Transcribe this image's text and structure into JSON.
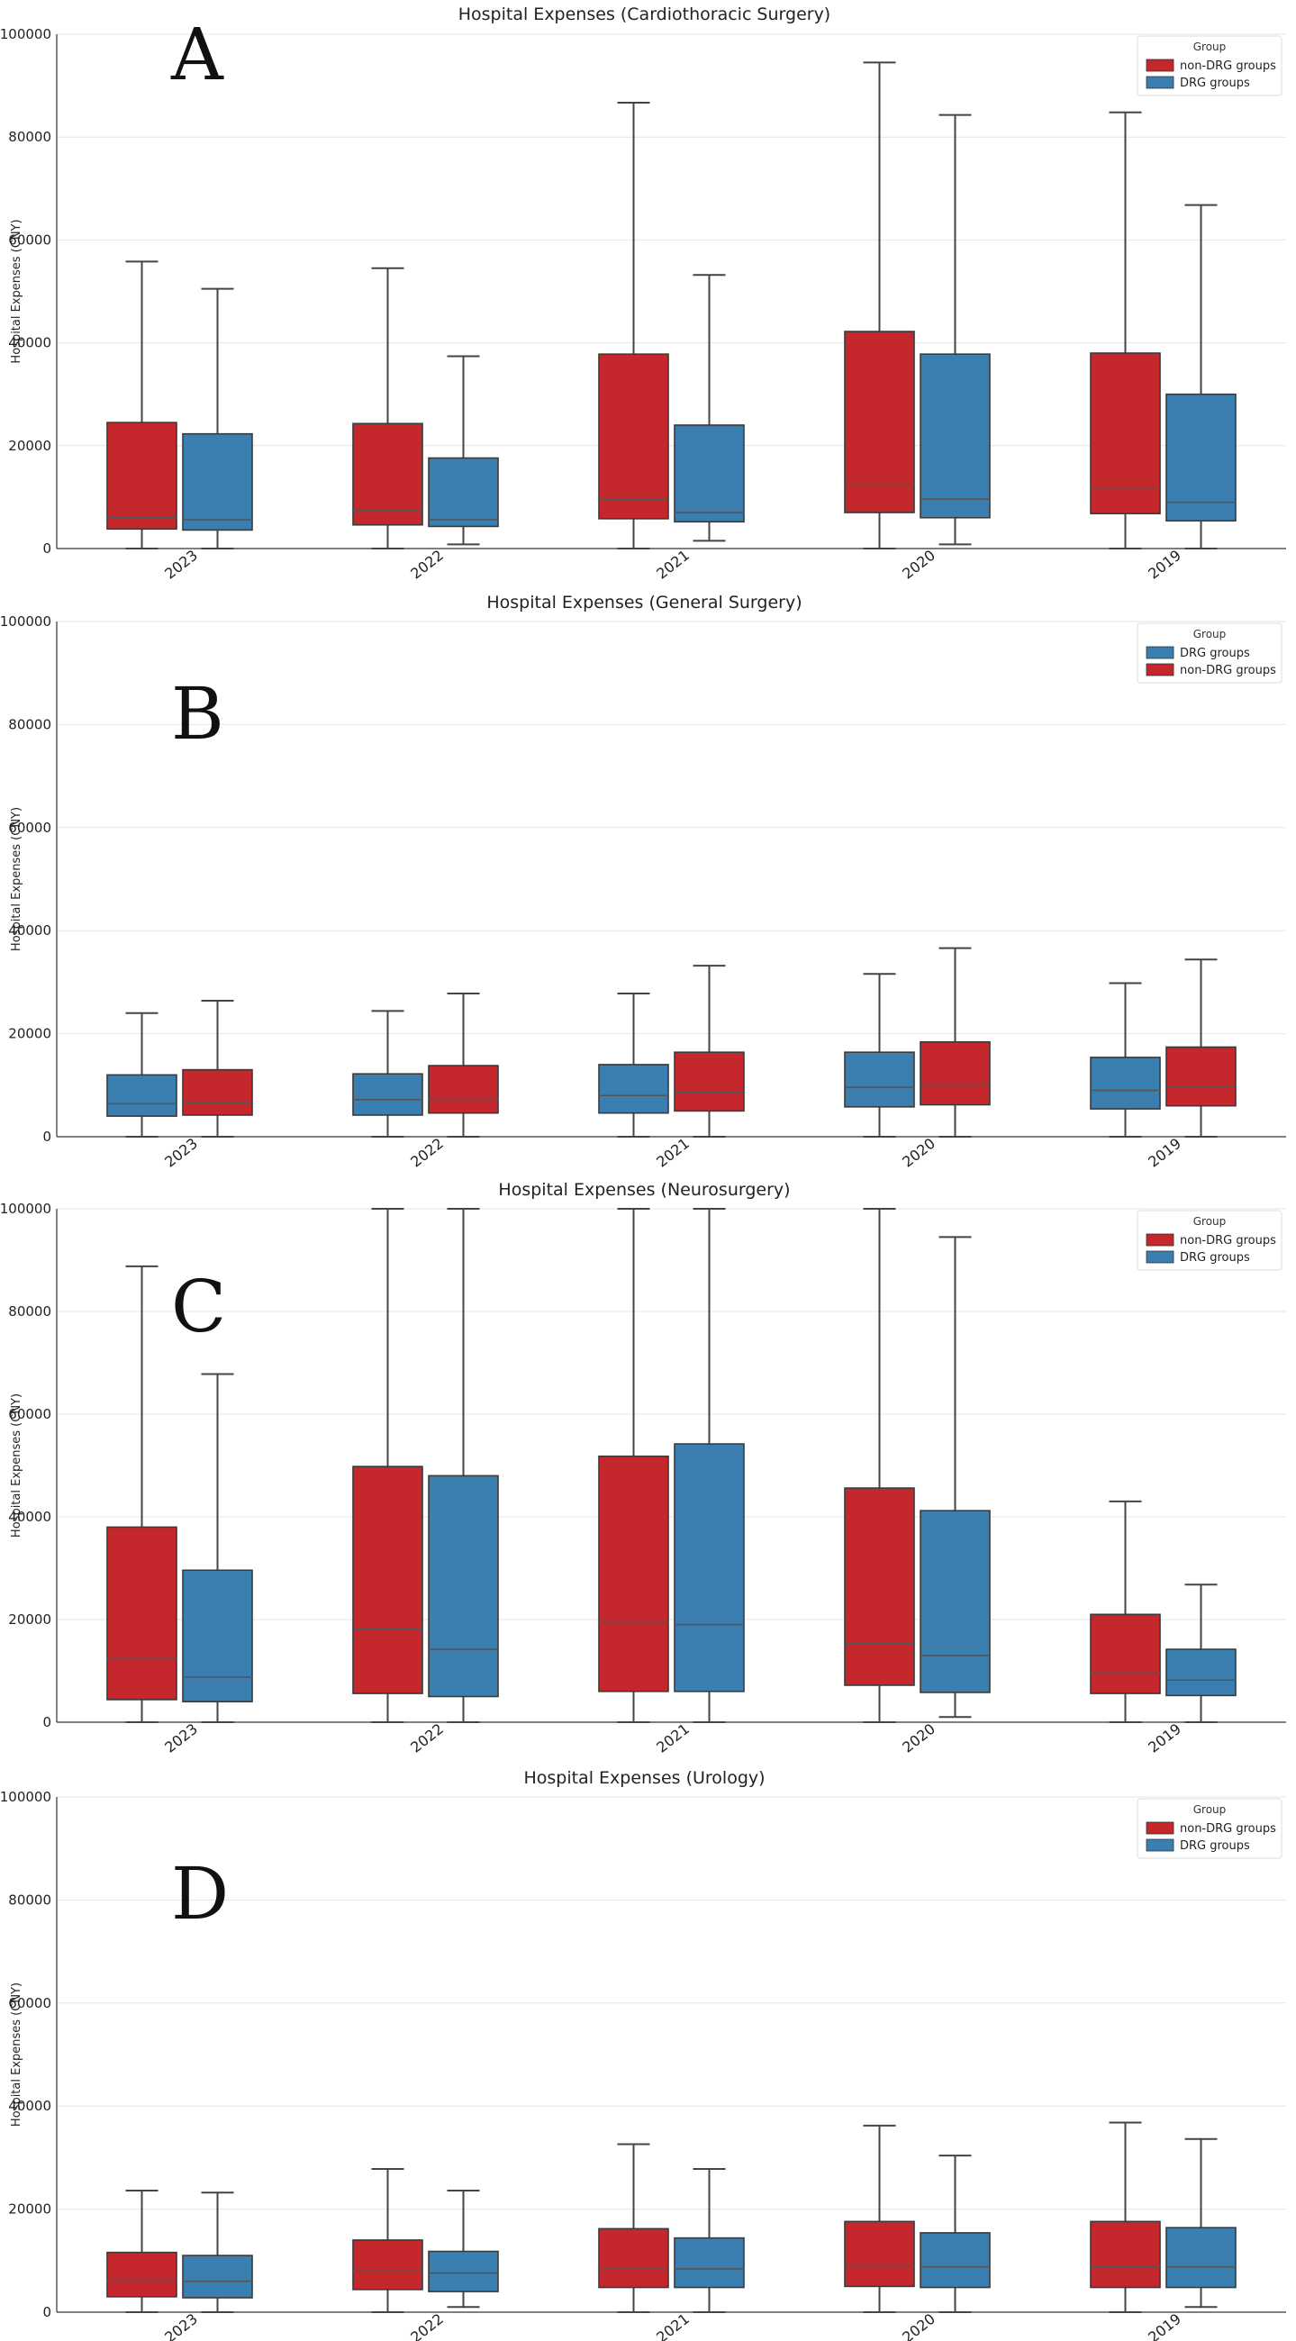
{
  "colors": {
    "nonDRG": "#c4282d",
    "DRG": "#3b7fb0"
  },
  "chart_data": [
    {
      "type": "box",
      "panel_letter": "A",
      "title": "Hospital Expenses (Cardiothoracic Surgery)",
      "ylabel": "Hospital Expenses (CNY)",
      "xlabel": "",
      "ylim": [
        0,
        100000
      ],
      "yticks": [
        "0",
        "20000",
        "40000",
        "60000",
        "80000",
        "100000"
      ],
      "categories": [
        "2023",
        "2022",
        "2021",
        "2020",
        "2019"
      ],
      "legend": {
        "title": "Group",
        "placement": "top-right",
        "entries": [
          {
            "name": "non-DRG groups",
            "color": "#c4282d"
          },
          {
            "name": "DRG groups",
            "color": "#3b7fb0"
          }
        ]
      },
      "series": [
        {
          "name": "non-DRG groups",
          "color": "#c4282d",
          "boxes": [
            {
              "min": 0,
              "q1": 3800,
              "median": 6000,
              "q3": 24500,
              "max": 55800
            },
            {
              "min": 0,
              "q1": 4600,
              "median": 7400,
              "q3": 24300,
              "max": 54500
            },
            {
              "min": 0,
              "q1": 5800,
              "median": 9600,
              "q3": 37800,
              "max": 86700
            },
            {
              "min": 0,
              "q1": 7000,
              "median": 12500,
              "q3": 42200,
              "max": 94500
            },
            {
              "min": 0,
              "q1": 6800,
              "median": 11800,
              "q3": 38000,
              "max": 84800
            }
          ]
        },
        {
          "name": "DRG groups",
          "color": "#3b7fb0",
          "boxes": [
            {
              "min": 0,
              "q1": 3600,
              "median": 5600,
              "q3": 22300,
              "max": 50500
            },
            {
              "min": 800,
              "q1": 4300,
              "median": 5600,
              "q3": 17600,
              "max": 37400
            },
            {
              "min": 1500,
              "q1": 5200,
              "median": 7000,
              "q3": 24000,
              "max": 53200
            },
            {
              "min": 800,
              "q1": 6000,
              "median": 9600,
              "q3": 37800,
              "max": 84300
            },
            {
              "min": 0,
              "q1": 5400,
              "median": 9000,
              "q3": 30000,
              "max": 66800
            }
          ]
        }
      ]
    },
    {
      "type": "box",
      "panel_letter": "B",
      "title": "Hospital Expenses (General Surgery)",
      "ylabel": "Hospital Expenses (CNY)",
      "xlabel": "",
      "ylim": [
        0,
        100000
      ],
      "yticks": [
        "0",
        "20000",
        "40000",
        "60000",
        "80000",
        "100000"
      ],
      "categories": [
        "2023",
        "2022",
        "2021",
        "2020",
        "2019"
      ],
      "legend": {
        "title": "Group",
        "placement": "top-right",
        "entries": [
          {
            "name": "DRG groups",
            "color": "#3b7fb0"
          },
          {
            "name": "non-DRG groups",
            "color": "#c4282d"
          }
        ]
      },
      "series": [
        {
          "name": "DRG groups",
          "color": "#3b7fb0",
          "boxes": [
            {
              "min": 0,
              "q1": 4000,
              "median": 6400,
              "q3": 12000,
              "max": 24000
            },
            {
              "min": 0,
              "q1": 4200,
              "median": 7200,
              "q3": 12200,
              "max": 24400
            },
            {
              "min": 0,
              "q1": 4600,
              "median": 8000,
              "q3": 14000,
              "max": 27800
            },
            {
              "min": 0,
              "q1": 5800,
              "median": 9600,
              "q3": 16400,
              "max": 31600
            },
            {
              "min": 0,
              "q1": 5400,
              "median": 9000,
              "q3": 15400,
              "max": 29800
            }
          ]
        },
        {
          "name": "non-DRG groups",
          "color": "#c4282d",
          "boxes": [
            {
              "min": 0,
              "q1": 4200,
              "median": 6600,
              "q3": 13000,
              "max": 26400
            },
            {
              "min": 0,
              "q1": 4600,
              "median": 7400,
              "q3": 13800,
              "max": 27800
            },
            {
              "min": 0,
              "q1": 5000,
              "median": 8600,
              "q3": 16400,
              "max": 33200
            },
            {
              "min": 0,
              "q1": 6200,
              "median": 10200,
              "q3": 18400,
              "max": 36600
            },
            {
              "min": 0,
              "q1": 6000,
              "median": 9800,
              "q3": 17400,
              "max": 34400
            }
          ]
        }
      ]
    },
    {
      "type": "box",
      "panel_letter": "C",
      "title": "Hospital Expenses (Neurosurgery)",
      "ylabel": "Hospital Expenses (CNY)",
      "xlabel": "",
      "ylim": [
        0,
        100000
      ],
      "yticks": [
        "0",
        "20000",
        "40000",
        "60000",
        "80000",
        "100000"
      ],
      "categories": [
        "2023",
        "2022",
        "2021",
        "2020",
        "2019"
      ],
      "legend": {
        "title": "Group",
        "placement": "top-right",
        "entries": [
          {
            "name": "non-DRG groups",
            "color": "#c4282d"
          },
          {
            "name": "DRG groups",
            "color": "#3b7fb0"
          }
        ]
      },
      "series": [
        {
          "name": "non-DRG groups",
          "color": "#c4282d",
          "boxes": [
            {
              "min": 0,
              "q1": 4400,
              "median": 12400,
              "q3": 38000,
              "max": 88800
            },
            {
              "min": 0,
              "q1": 5600,
              "median": 18200,
              "q3": 49800,
              "max": 100000
            },
            {
              "min": 0,
              "q1": 6000,
              "median": 19400,
              "q3": 51800,
              "max": 100000
            },
            {
              "min": 0,
              "q1": 7200,
              "median": 15400,
              "q3": 45600,
              "max": 100000
            },
            {
              "min": 0,
              "q1": 5600,
              "median": 9600,
              "q3": 21000,
              "max": 43000
            }
          ]
        },
        {
          "name": "DRG groups",
          "color": "#3b7fb0",
          "boxes": [
            {
              "min": 0,
              "q1": 4000,
              "median": 8800,
              "q3": 29600,
              "max": 67800
            },
            {
              "min": 0,
              "q1": 5000,
              "median": 14200,
              "q3": 48000,
              "max": 100000
            },
            {
              "min": 0,
              "q1": 6000,
              "median": 19000,
              "q3": 54200,
              "max": 100000
            },
            {
              "min": 1000,
              "q1": 5800,
              "median": 13000,
              "q3": 41200,
              "max": 94500
            },
            {
              "min": 0,
              "q1": 5200,
              "median": 8200,
              "q3": 14200,
              "max": 26800
            }
          ]
        }
      ]
    },
    {
      "type": "box",
      "panel_letter": "D",
      "title": "Hospital Expenses (Urology)",
      "ylabel": "Hospital Expenses (CNY)",
      "xlabel": "",
      "ylim": [
        0,
        100000
      ],
      "yticks": [
        "0",
        "20000",
        "40000",
        "60000",
        "80000",
        "100000"
      ],
      "categories": [
        "2023",
        "2022",
        "2021",
        "2020",
        "2019"
      ],
      "legend": {
        "title": "Group",
        "placement": "top-right",
        "entries": [
          {
            "name": "non-DRG groups",
            "color": "#c4282d"
          },
          {
            "name": "DRG groups",
            "color": "#3b7fb0"
          }
        ]
      },
      "series": [
        {
          "name": "non-DRG groups",
          "color": "#c4282d",
          "boxes": [
            {
              "min": 0,
              "q1": 3000,
              "median": 6200,
              "q3": 11600,
              "max": 23600
            },
            {
              "min": 0,
              "q1": 4400,
              "median": 8000,
              "q3": 14000,
              "max": 27800
            },
            {
              "min": 0,
              "q1": 4800,
              "median": 8600,
              "q3": 16200,
              "max": 32600
            },
            {
              "min": 0,
              "q1": 5000,
              "median": 9000,
              "q3": 17600,
              "max": 36200
            },
            {
              "min": 0,
              "q1": 4800,
              "median": 8800,
              "q3": 17600,
              "max": 36800
            }
          ]
        },
        {
          "name": "DRG groups",
          "color": "#3b7fb0",
          "boxes": [
            {
              "min": 0,
              "q1": 2800,
              "median": 6000,
              "q3": 11000,
              "max": 23200
            },
            {
              "min": 1000,
              "q1": 4000,
              "median": 7600,
              "q3": 11800,
              "max": 23600
            },
            {
              "min": 0,
              "q1": 4800,
              "median": 8400,
              "q3": 14400,
              "max": 27800
            },
            {
              "min": 0,
              "q1": 4800,
              "median": 8800,
              "q3": 15400,
              "max": 30400
            },
            {
              "min": 1000,
              "q1": 4800,
              "median": 8800,
              "q3": 16400,
              "max": 33600
            }
          ]
        }
      ]
    }
  ]
}
